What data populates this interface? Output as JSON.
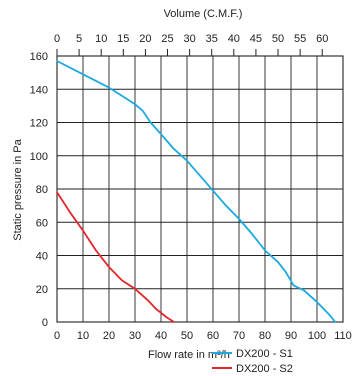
{
  "chart_data": {
    "type": "line",
    "title": "",
    "top_axis": {
      "label": "Volume (C.M.F.)",
      "ticks": [
        0,
        5,
        10,
        15,
        20,
        25,
        30,
        35,
        40,
        45,
        50,
        55,
        60
      ],
      "range": [
        0,
        64.7
      ]
    },
    "xlabel": "Flow rate in m³/h",
    "ylabel": "Static pressure in Pa",
    "xlim": [
      0,
      110
    ],
    "ylim": [
      0,
      160
    ],
    "x_ticks": [
      0,
      10,
      20,
      30,
      40,
      50,
      60,
      70,
      80,
      90,
      100,
      110
    ],
    "y_ticks": [
      0,
      20,
      40,
      60,
      80,
      100,
      120,
      140,
      160
    ],
    "grid": true,
    "legend_position": "bottom-right",
    "series": [
      {
        "name": "DX200 - S1",
        "color": "#1BA9E1",
        "x": [
          0,
          10,
          20,
          25,
          30,
          33,
          36,
          40,
          45,
          50,
          55,
          60,
          65,
          70,
          75,
          80,
          85,
          88,
          91,
          95,
          100,
          105,
          107
        ],
        "y": [
          157,
          149,
          141,
          136,
          131,
          127,
          120,
          113,
          104,
          97,
          88,
          79,
          70,
          62,
          53,
          43,
          36,
          30,
          22,
          19,
          12,
          4,
          0
        ]
      },
      {
        "name": "DX200 - S2",
        "color": "#E3262C",
        "x": [
          0,
          5,
          10,
          15,
          20,
          25,
          30,
          35,
          38,
          42,
          45
        ],
        "y": [
          78,
          66,
          55,
          43,
          33,
          25,
          20,
          13,
          8,
          3,
          0
        ]
      }
    ]
  }
}
